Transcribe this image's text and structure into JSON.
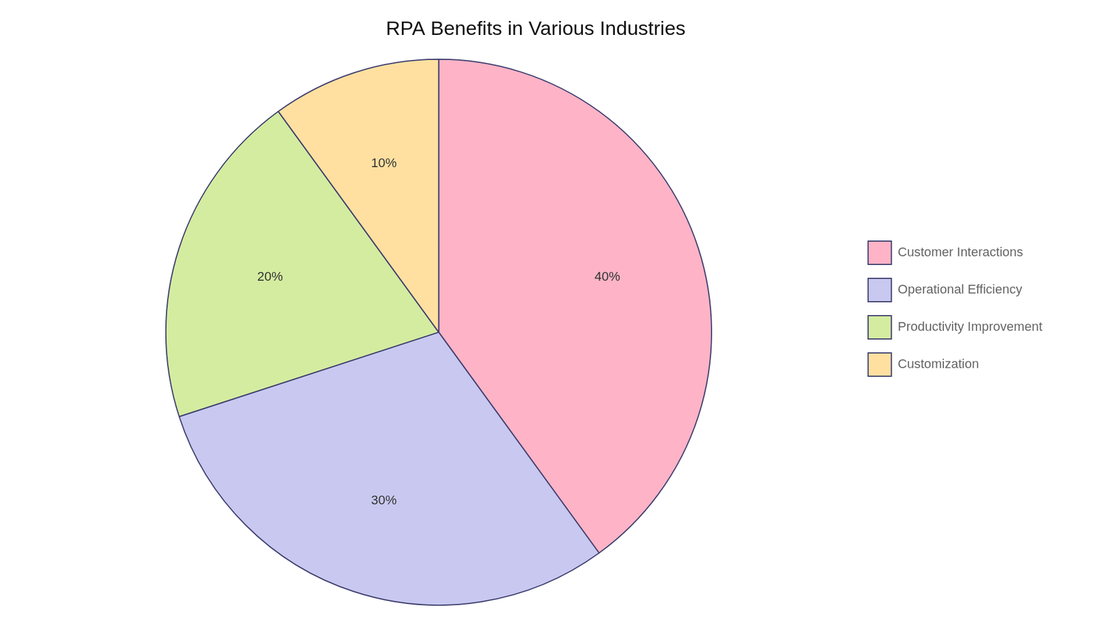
{
  "chart_data": {
    "type": "pie",
    "title": "RPA Benefits in Various Industries",
    "categories": [
      "Customer Interactions",
      "Operational Efficiency",
      "Productivity Improvement",
      "Customization"
    ],
    "values": [
      40,
      30,
      20,
      10
    ],
    "value_labels": [
      "40%",
      "30%",
      "20%",
      "10%"
    ],
    "colors": [
      "#FFB3C6",
      "#C8C8F0",
      "#D4ECA0",
      "#FFE0A0"
    ],
    "data_labels": true,
    "legend": "right"
  }
}
